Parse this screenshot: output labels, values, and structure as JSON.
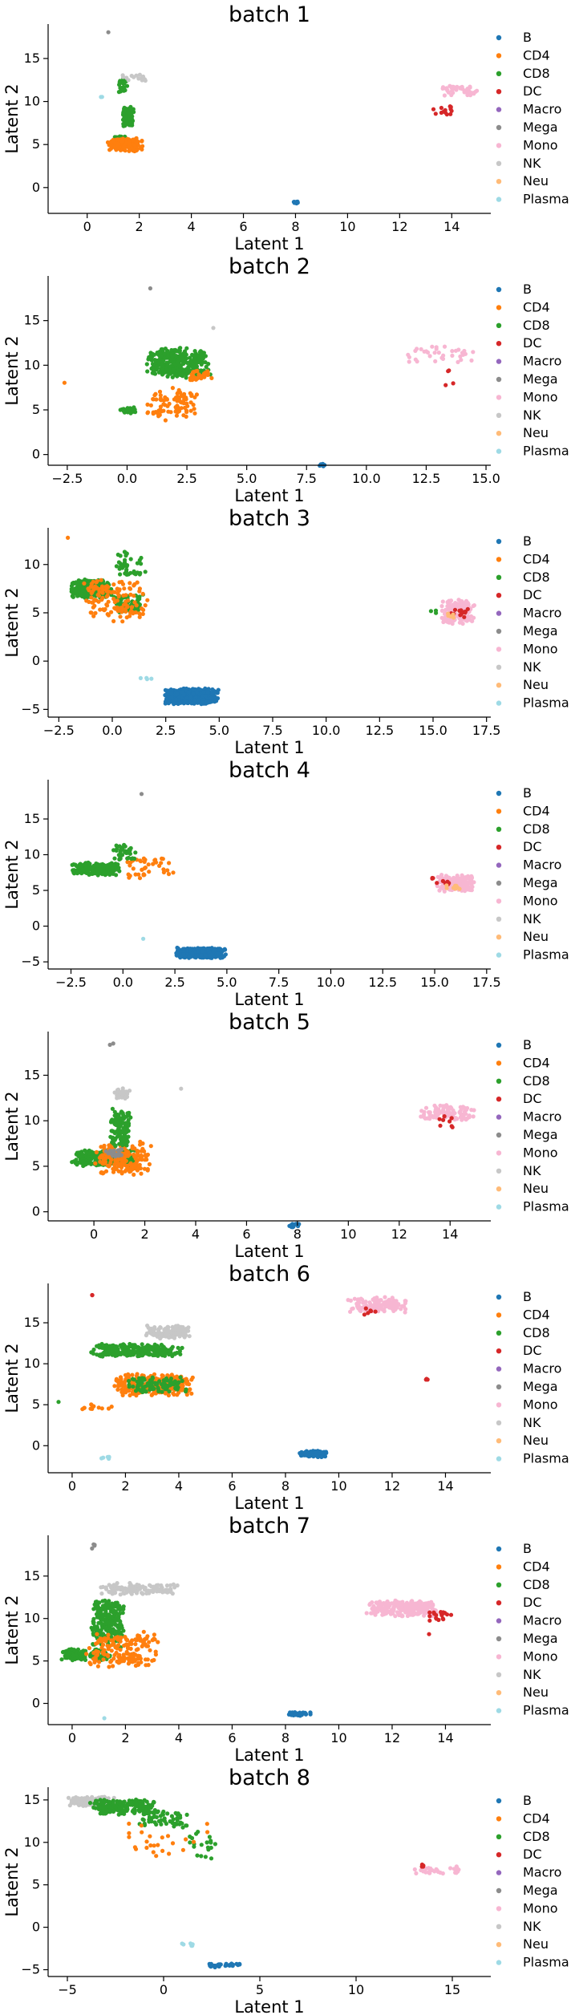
{
  "legend_labels": [
    "B",
    "CD4",
    "CD8",
    "DC",
    "Macro",
    "Mega",
    "Mono",
    "NK",
    "Neu",
    "Plasma"
  ],
  "colors": {
    "B": "#1f77b4",
    "CD4": "#ff7f0e",
    "CD8": "#2ca02c",
    "DC": "#d62728",
    "Macro": "#9467bd",
    "Mega": "#8c8c8c",
    "Mono": "#f7b6d2",
    "NK": "#c7c7c7",
    "Neu": "#ffbb78",
    "Plasma": "#9edae5"
  },
  "chart_data": [
    {
      "type": "scatter",
      "title": "batch 1",
      "xlabel": "Latent 1",
      "ylabel": "Latent 2",
      "xlim": [
        -1.5,
        15.5
      ],
      "ylim": [
        -3,
        19
      ],
      "xticks": [
        0,
        2,
        4,
        6,
        8,
        10,
        12,
        14
      ],
      "yticks": [
        0,
        5,
        10,
        15
      ],
      "legend": "right",
      "clusters": [
        {
          "label": "CD8",
          "x": [
            1.0,
            1.5
          ],
          "y": [
            4.6,
            6.0
          ],
          "n": 260
        },
        {
          "label": "CD8",
          "x": [
            1.3,
            1.8
          ],
          "y": [
            7.0,
            9.5
          ],
          "n": 90
        },
        {
          "label": "CD4",
          "x": [
            0.7,
            2.2
          ],
          "y": [
            4.2,
            5.8
          ],
          "n": 170
        },
        {
          "label": "CD8",
          "x": [
            1.2,
            1.6
          ],
          "y": [
            11.0,
            12.8
          ],
          "n": 30
        },
        {
          "label": "NK",
          "x": [
            1.0,
            2.5
          ],
          "y": [
            12.3,
            13.2
          ],
          "n": 15
        },
        {
          "label": "Mega",
          "x": [
            0.8,
            0.9
          ],
          "y": [
            18.0,
            18.3
          ],
          "n": 1
        },
        {
          "label": "Plasma",
          "x": [
            0.5,
            0.6
          ],
          "y": [
            10.5,
            10.7
          ],
          "n": 2
        },
        {
          "label": "B",
          "x": [
            7.9,
            8.1
          ],
          "y": [
            -1.9,
            -1.6
          ],
          "n": 12
        },
        {
          "label": "Mono",
          "x": [
            13.6,
            15.0
          ],
          "y": [
            10.5,
            12.0
          ],
          "n": 40
        },
        {
          "label": "DC",
          "x": [
            13.2,
            14.2
          ],
          "y": [
            8.3,
            9.6
          ],
          "n": 14
        }
      ]
    },
    {
      "type": "scatter",
      "title": "batch 2",
      "xlabel": "Latent 1",
      "ylabel": "Latent 2",
      "xlim": [
        -3.3,
        15.2
      ],
      "ylim": [
        -1.2,
        20
      ],
      "xticks": [
        -2.5,
        0.0,
        2.5,
        5.0,
        7.5,
        10.0,
        12.5,
        15.0
      ],
      "yticks": [
        0,
        5,
        10,
        15
      ],
      "legend": "right",
      "clusters": [
        {
          "label": "CD8",
          "x": [
            0.8,
            3.5
          ],
          "y": [
            8.5,
            12.0
          ],
          "n": 330
        },
        {
          "label": "CD4",
          "x": [
            0.8,
            3.0
          ],
          "y": [
            3.8,
            7.5
          ],
          "n": 90
        },
        {
          "label": "CD8",
          "x": [
            -0.3,
            0.4
          ],
          "y": [
            4.6,
            5.4
          ],
          "n": 30
        },
        {
          "label": "CD4",
          "x": [
            2.5,
            3.6
          ],
          "y": [
            8.2,
            9.5
          ],
          "n": 30
        },
        {
          "label": "CD4",
          "x": [
            -2.7,
            -2.6
          ],
          "y": [
            7.9,
            8.1
          ],
          "n": 1
        },
        {
          "label": "Mega",
          "x": [
            0.9,
            1.0
          ],
          "y": [
            18.5,
            18.7
          ],
          "n": 1
        },
        {
          "label": "NK",
          "x": [
            3.5,
            3.7
          ],
          "y": [
            14.0,
            14.3
          ],
          "n": 1
        },
        {
          "label": "B",
          "x": [
            8.0,
            8.3
          ],
          "y": [
            -1.4,
            -1.0
          ],
          "n": 10
        },
        {
          "label": "Mono",
          "x": [
            11.5,
            14.8
          ],
          "y": [
            10.0,
            12.5
          ],
          "n": 35
        },
        {
          "label": "DC",
          "x": [
            13.3,
            13.7
          ],
          "y": [
            7.5,
            10.2
          ],
          "n": 4
        }
      ]
    },
    {
      "type": "scatter",
      "title": "batch 3",
      "xlabel": "Latent 1",
      "ylabel": "Latent 2",
      "xlim": [
        -3.0,
        17.7
      ],
      "ylim": [
        -5.8,
        13.8
      ],
      "xticks": [
        -2.5,
        0.0,
        2.5,
        5.0,
        7.5,
        10.0,
        12.5,
        15.0,
        17.5
      ],
      "yticks": [
        -5,
        0,
        5,
        10
      ],
      "legend": "right",
      "clusters": [
        {
          "label": "CD8",
          "x": [
            -2.0,
            0.0
          ],
          "y": [
            6.5,
            8.5
          ],
          "n": 250
        },
        {
          "label": "CD8",
          "x": [
            0.0,
            1.5
          ],
          "y": [
            5.0,
            7.0
          ],
          "n": 70
        },
        {
          "label": "CD4",
          "x": [
            -1.5,
            1.7
          ],
          "y": [
            4.0,
            8.5
          ],
          "n": 130
        },
        {
          "label": "CD8",
          "x": [
            0.0,
            1.8
          ],
          "y": [
            8.5,
            11.5
          ],
          "n": 40
        },
        {
          "label": "CD4",
          "x": [
            -2.1,
            -1.9
          ],
          "y": [
            12.7,
            12.9
          ],
          "n": 1
        },
        {
          "label": "B",
          "x": [
            2.4,
            5.0
          ],
          "y": [
            -4.5,
            -2.8
          ],
          "n": 520
        },
        {
          "label": "Plasma",
          "x": [
            1.0,
            2.3
          ],
          "y": [
            -1.9,
            -1.6
          ],
          "n": 4
        },
        {
          "label": "Mono",
          "x": [
            15.3,
            17.0
          ],
          "y": [
            3.8,
            6.5
          ],
          "n": 130
        },
        {
          "label": "DC",
          "x": [
            15.5,
            16.8
          ],
          "y": [
            4.3,
            5.6
          ],
          "n": 12
        },
        {
          "label": "Neu",
          "x": [
            15.6,
            16.2
          ],
          "y": [
            4.4,
            5.0
          ],
          "n": 6
        },
        {
          "label": "CD8",
          "x": [
            14.8,
            15.3
          ],
          "y": [
            4.9,
            5.3
          ],
          "n": 3
        }
      ]
    },
    {
      "type": "scatter",
      "title": "batch 4",
      "xlabel": "Latent 1",
      "ylabel": "Latent 2",
      "xlim": [
        -3.6,
        17.7
      ],
      "ylim": [
        -6.0,
        20.5
      ],
      "xticks": [
        -2.5,
        0.0,
        2.5,
        5.0,
        7.5,
        10.0,
        12.5,
        15.0,
        17.5
      ],
      "yticks": [
        -5,
        0,
        5,
        10,
        15
      ],
      "legend": "right",
      "clusters": [
        {
          "label": "CD8",
          "x": [
            -2.5,
            0.0
          ],
          "y": [
            7.0,
            9.0
          ],
          "n": 210
        },
        {
          "label": "CD4",
          "x": [
            0.0,
            2.7
          ],
          "y": [
            6.5,
            9.8
          ],
          "n": 40
        },
        {
          "label": "CD8",
          "x": [
            -0.5,
            0.6
          ],
          "y": [
            9.0,
            11.5
          ],
          "n": 35
        },
        {
          "label": "Mega",
          "x": [
            0.8,
            0.9
          ],
          "y": [
            18.4,
            18.6
          ],
          "n": 1
        },
        {
          "label": "Plasma",
          "x": [
            0.9,
            1.0
          ],
          "y": [
            -1.9,
            -1.7
          ],
          "n": 1
        },
        {
          "label": "B",
          "x": [
            2.5,
            5.0
          ],
          "y": [
            -4.5,
            -3.0
          ],
          "n": 460
        },
        {
          "label": "Mono",
          "x": [
            15.0,
            17.0
          ],
          "y": [
            4.8,
            7.3
          ],
          "n": 140
        },
        {
          "label": "DC",
          "x": [
            14.8,
            15.8
          ],
          "y": [
            5.5,
            7.0
          ],
          "n": 10
        },
        {
          "label": "Neu",
          "x": [
            15.5,
            16.3
          ],
          "y": [
            5.0,
            6.0
          ],
          "n": 8
        }
      ]
    },
    {
      "type": "scatter",
      "title": "batch 5",
      "xlabel": "Latent 1",
      "ylabel": "Latent 2",
      "xlim": [
        -1.8,
        15.6
      ],
      "ylim": [
        -1.0,
        19.8
      ],
      "xticks": [
        0,
        2,
        4,
        6,
        8,
        10,
        12,
        14
      ],
      "yticks": [
        0,
        5,
        10,
        15
      ],
      "legend": "right",
      "clusters": [
        {
          "label": "CD8",
          "x": [
            -0.9,
            1.8
          ],
          "y": [
            5.0,
            6.8
          ],
          "n": 300
        },
        {
          "label": "CD4",
          "x": [
            0.0,
            2.3
          ],
          "y": [
            4.0,
            7.8
          ],
          "n": 180
        },
        {
          "label": "CD8",
          "x": [
            0.6,
            1.5
          ],
          "y": [
            7.0,
            11.5
          ],
          "n": 120
        },
        {
          "label": "NK",
          "x": [
            0.8,
            1.5
          ],
          "y": [
            12.3,
            13.6
          ],
          "n": 30
        },
        {
          "label": "Mega",
          "x": [
            0.4,
            1.2
          ],
          "y": [
            6.0,
            7.0
          ],
          "n": 20
        },
        {
          "label": "Mega",
          "x": [
            0.6,
            0.8
          ],
          "y": [
            18.3,
            18.6
          ],
          "n": 2
        },
        {
          "label": "NK",
          "x": [
            3.3,
            3.5
          ],
          "y": [
            13.4,
            13.6
          ],
          "n": 1
        },
        {
          "label": "B",
          "x": [
            7.6,
            8.1
          ],
          "y": [
            -1.8,
            -1.2
          ],
          "n": 18
        },
        {
          "label": "Mono",
          "x": [
            12.8,
            15.0
          ],
          "y": [
            10.0,
            11.8
          ],
          "n": 100
        },
        {
          "label": "DC",
          "x": [
            13.4,
            14.2
          ],
          "y": [
            9.2,
            10.8
          ],
          "n": 8
        }
      ]
    },
    {
      "type": "scatter",
      "title": "batch 6",
      "xlabel": "Latent 1",
      "ylabel": "Latent 2",
      "xlim": [
        -0.9,
        15.7
      ],
      "ylim": [
        -3.3,
        19.8
      ],
      "xticks": [
        0,
        2,
        4,
        6,
        8,
        10,
        12,
        14
      ],
      "yticks": [
        0,
        5,
        10,
        15
      ],
      "legend": "right",
      "clusters": [
        {
          "label": "CD8",
          "x": [
            0.5,
            4.2
          ],
          "y": [
            10.8,
            12.5
          ],
          "n": 240
        },
        {
          "label": "NK",
          "x": [
            2.7,
            4.5
          ],
          "y": [
            13.0,
            14.8
          ],
          "n": 120
        },
        {
          "label": "CD4",
          "x": [
            1.5,
            4.6
          ],
          "y": [
            6.0,
            8.8
          ],
          "n": 300
        },
        {
          "label": "CD8",
          "x": [
            2.0,
            4.3
          ],
          "y": [
            6.5,
            8.5
          ],
          "n": 90
        },
        {
          "label": "CD4",
          "x": [
            0.1,
            1.5
          ],
          "y": [
            4.3,
            5.1
          ],
          "n": 12
        },
        {
          "label": "CD8",
          "x": [
            -0.6,
            -0.4
          ],
          "y": [
            5.3,
            5.5
          ],
          "n": 1
        },
        {
          "label": "DC",
          "x": [
            0.7,
            0.8
          ],
          "y": [
            18.3,
            18.6
          ],
          "n": 2
        },
        {
          "label": "Plasma",
          "x": [
            1.0,
            1.5
          ],
          "y": [
            -1.7,
            -1.3
          ],
          "n": 6
        },
        {
          "label": "B",
          "x": [
            8.5,
            9.6
          ],
          "y": [
            -1.4,
            -0.6
          ],
          "n": 90
        },
        {
          "label": "Mono",
          "x": [
            10.3,
            12.6
          ],
          "y": [
            16.2,
            18.2
          ],
          "n": 130
        },
        {
          "label": "DC",
          "x": [
            10.9,
            11.4
          ],
          "y": [
            15.9,
            16.9
          ],
          "n": 6
        },
        {
          "label": "DC",
          "x": [
            13.1,
            13.6
          ],
          "y": [
            8.0,
            8.3
          ],
          "n": 3
        }
      ]
    },
    {
      "type": "scatter",
      "title": "batch 7",
      "xlabel": "Latent 1",
      "ylabel": "Latent 2",
      "xlim": [
        -0.9,
        15.7
      ],
      "ylim": [
        -2.5,
        19.8
      ],
      "xticks": [
        0,
        2,
        4,
        6,
        8,
        10,
        12,
        14
      ],
      "yticks": [
        0,
        5,
        10,
        15
      ],
      "legend": "right",
      "clusters": [
        {
          "label": "CD8",
          "x": [
            -0.5,
            1.5
          ],
          "y": [
            5.0,
            6.5
          ],
          "n": 150
        },
        {
          "label": "CD8",
          "x": [
            0.6,
            2.0
          ],
          "y": [
            6.5,
            12.5
          ],
          "n": 230
        },
        {
          "label": "CD4",
          "x": [
            0.5,
            3.5
          ],
          "y": [
            4.2,
            8.5
          ],
          "n": 170
        },
        {
          "label": "NK",
          "x": [
            1.0,
            4.0
          ],
          "y": [
            12.8,
            14.2
          ],
          "n": 130
        },
        {
          "label": "Mega",
          "x": [
            0.7,
            0.9
          ],
          "y": [
            18.2,
            19.0
          ],
          "n": 4
        },
        {
          "label": "Plasma",
          "x": [
            1.1,
            1.3
          ],
          "y": [
            -1.8,
            -1.6
          ],
          "n": 1
        },
        {
          "label": "B",
          "x": [
            8.0,
            9.0
          ],
          "y": [
            -1.5,
            -1.0
          ],
          "n": 40
        },
        {
          "label": "Mono",
          "x": [
            11.0,
            13.8
          ],
          "y": [
            10.2,
            12.2
          ],
          "n": 240
        },
        {
          "label": "DC",
          "x": [
            13.3,
            14.3
          ],
          "y": [
            9.6,
            11.0
          ],
          "n": 20
        },
        {
          "label": "DC",
          "x": [
            13.3,
            13.5
          ],
          "y": [
            7.9,
            8.2
          ],
          "n": 1
        }
      ]
    },
    {
      "type": "scatter",
      "title": "batch 8",
      "xlabel": "Latent 1",
      "ylabel": "Latent 2",
      "xlim": [
        -6.0,
        17.0
      ],
      "ylim": [
        -5.8,
        16.5
      ],
      "xticks": [
        -5,
        0,
        5,
        10,
        15
      ],
      "yticks": [
        -5,
        0,
        5,
        10,
        15
      ],
      "legend": "right",
      "clusters": [
        {
          "label": "NK",
          "x": [
            -5.0,
            -2.5
          ],
          "y": [
            14.2,
            15.4
          ],
          "n": 140
        },
        {
          "label": "CD8",
          "x": [
            -4.0,
            0.0
          ],
          "y": [
            13.2,
            15.2
          ],
          "n": 170
        },
        {
          "label": "CD8",
          "x": [
            -1.5,
            1.5
          ],
          "y": [
            11.5,
            13.8
          ],
          "n": 60
        },
        {
          "label": "CD8",
          "x": [
            1.3,
            2.8
          ],
          "y": [
            8.0,
            11.5
          ],
          "n": 20
        },
        {
          "label": "CD4",
          "x": [
            -2.5,
            2.8
          ],
          "y": [
            8.3,
            13.0
          ],
          "n": 25
        },
        {
          "label": "Plasma",
          "x": [
            0.9,
            1.6
          ],
          "y": [
            -2.4,
            -1.8
          ],
          "n": 6
        },
        {
          "label": "B",
          "x": [
            2.0,
            4.2
          ],
          "y": [
            -4.8,
            -4.2
          ],
          "n": 35
        },
        {
          "label": "Mono",
          "x": [
            12.5,
            15.8
          ],
          "y": [
            6.2,
            7.2
          ],
          "n": 30
        },
        {
          "label": "DC",
          "x": [
            13.2,
            13.6
          ],
          "y": [
            6.8,
            7.6
          ],
          "n": 5
        }
      ]
    }
  ]
}
